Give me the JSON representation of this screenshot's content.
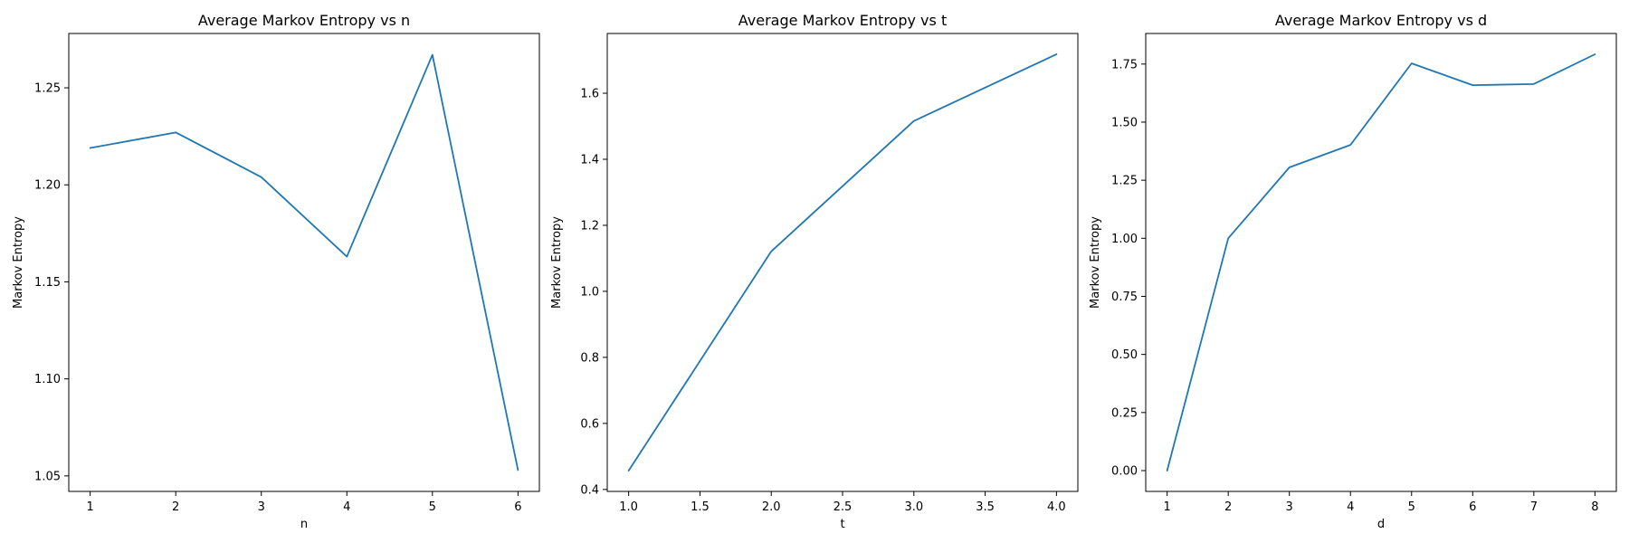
{
  "chart_data": [
    {
      "type": "line",
      "title": "Average Markov Entropy vs n",
      "xlabel": "n",
      "ylabel": "Markov Entropy",
      "x": [
        1,
        2,
        3,
        4,
        5,
        6
      ],
      "series": [
        {
          "values": [
            1.219,
            1.227,
            1.204,
            1.163,
            1.267,
            1.053
          ]
        }
      ],
      "xlim": [
        0.75,
        6.25
      ],
      "ylim": [
        1.042,
        1.278
      ],
      "xticks": [
        1,
        2,
        3,
        4,
        5,
        6
      ],
      "xtick_labels": [
        "1",
        "2",
        "3",
        "4",
        "5",
        "6"
      ],
      "yticks": [
        1.05,
        1.1,
        1.15,
        1.2,
        1.25
      ],
      "ytick_labels": [
        "1.05",
        "1.10",
        "1.15",
        "1.20",
        "1.25"
      ],
      "grid": false,
      "line_color": "#1f77b4"
    },
    {
      "type": "line",
      "title": "Average Markov Entropy vs t",
      "xlabel": "t",
      "ylabel": "Markov Entropy",
      "x": [
        1.0,
        2.0,
        3.0,
        4.0
      ],
      "series": [
        {
          "values": [
            0.457,
            1.121,
            1.516,
            1.718
          ]
        }
      ],
      "xlim": [
        0.85,
        4.15
      ],
      "ylim": [
        0.394,
        1.781
      ],
      "xticks": [
        1.0,
        1.5,
        2.0,
        2.5,
        3.0,
        3.5,
        4.0
      ],
      "xtick_labels": [
        "1.0",
        "1.5",
        "2.0",
        "2.5",
        "3.0",
        "3.5",
        "4.0"
      ],
      "yticks": [
        0.4,
        0.6,
        0.8,
        1.0,
        1.2,
        1.4,
        1.6
      ],
      "ytick_labels": [
        "0.4",
        "0.6",
        "0.8",
        "1.0",
        "1.2",
        "1.4",
        "1.6"
      ],
      "grid": false,
      "line_color": "#1f77b4"
    },
    {
      "type": "line",
      "title": "Average Markov Entropy vs d",
      "xlabel": "d",
      "ylabel": "Markov Entropy",
      "x": [
        1,
        2,
        3,
        4,
        5,
        6,
        7,
        8
      ],
      "series": [
        {
          "values": [
            0.0,
            1.0,
            1.305,
            1.402,
            1.753,
            1.659,
            1.664,
            1.792
          ]
        }
      ],
      "xlim": [
        0.65,
        8.35
      ],
      "ylim": [
        -0.0896,
        1.8816
      ],
      "xticks": [
        1,
        2,
        3,
        4,
        5,
        6,
        7,
        8
      ],
      "xtick_labels": [
        "1",
        "2",
        "3",
        "4",
        "5",
        "6",
        "7",
        "8"
      ],
      "yticks": [
        0.0,
        0.25,
        0.5,
        0.75,
        1.0,
        1.25,
        1.5,
        1.75
      ],
      "ytick_labels": [
        "0.00",
        "0.25",
        "0.50",
        "0.75",
        "1.00",
        "1.25",
        "1.50",
        "1.75"
      ],
      "grid": false,
      "line_color": "#1f77b4"
    }
  ]
}
